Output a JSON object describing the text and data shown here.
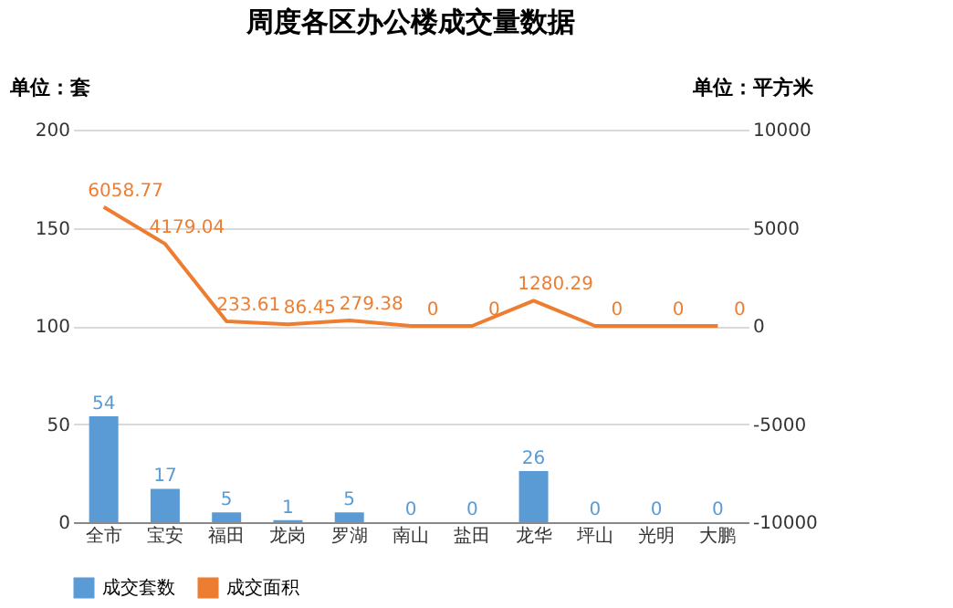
{
  "chart_data": {
    "type": "bar",
    "title": "周度各区办公楼成交量数据",
    "ylabel": "单位：套",
    "y2label": "单位：平方米",
    "categories": [
      "全市",
      "宝安",
      "福田",
      "龙岗",
      "罗湖",
      "南山",
      "盐田",
      "龙华",
      "坪山",
      "光明",
      "大鹏"
    ],
    "series": [
      {
        "name": "成交套数",
        "color": "#5b9bd5",
        "values": [
          54,
          17,
          5,
          1,
          5,
          0,
          0,
          26,
          0,
          0,
          0
        ]
      },
      {
        "name": "成交面积",
        "type": "line",
        "axis": "y2",
        "color": "#ed7d31",
        "values": [
          6058.77,
          4179.04,
          233.61,
          86.45,
          279.38,
          0,
          0,
          1280.29,
          0,
          0,
          0
        ]
      }
    ],
    "ylim": [
      0,
      200
    ],
    "yticks": [
      0,
      50,
      100,
      150,
      200
    ],
    "y2lim": [
      -10000,
      10000
    ],
    "y2ticks": [
      -10000,
      -5000,
      0,
      5000,
      10000
    ],
    "grid": "y",
    "legend": "bottom",
    "data_labels": true,
    "marker": "none"
  }
}
